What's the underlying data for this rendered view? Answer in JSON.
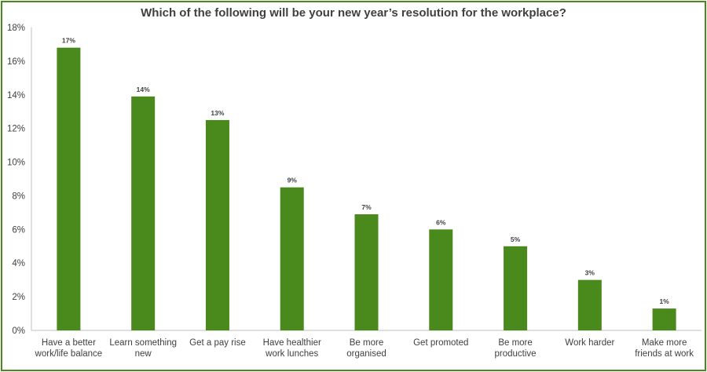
{
  "chart_data": {
    "type": "bar",
    "title": "Which of the following will be your new year’s resolution for the workplace?",
    "categories": [
      [
        "Have a better",
        "work/life balance"
      ],
      [
        "Learn something",
        "new"
      ],
      [
        "Get a pay rise"
      ],
      [
        "Have healthier",
        "work lunches"
      ],
      [
        "Be more",
        "organised"
      ],
      [
        "Get promoted"
      ],
      [
        "Be more",
        "productive"
      ],
      [
        "Work harder"
      ],
      [
        "Make more",
        "friends at work"
      ]
    ],
    "values": [
      16.8,
      13.9,
      12.5,
      8.5,
      6.9,
      6.0,
      5.0,
      3.0,
      1.3
    ],
    "data_labels": [
      "17%",
      "14%",
      "13%",
      "9%",
      "7%",
      "6%",
      "5%",
      "3%",
      "1%"
    ],
    "ylim": [
      0,
      18
    ],
    "yticks": [
      0,
      2,
      4,
      6,
      8,
      10,
      12,
      14,
      16,
      18
    ],
    "ytick_labels": [
      "0%",
      "2%",
      "4%",
      "6%",
      "8%",
      "10%",
      "12%",
      "14%",
      "16%",
      "18%"
    ],
    "grid": false,
    "colors": {
      "bar": "#4a8a1c",
      "border": "#4a8a1c",
      "axis": "#bfbfbf"
    }
  }
}
